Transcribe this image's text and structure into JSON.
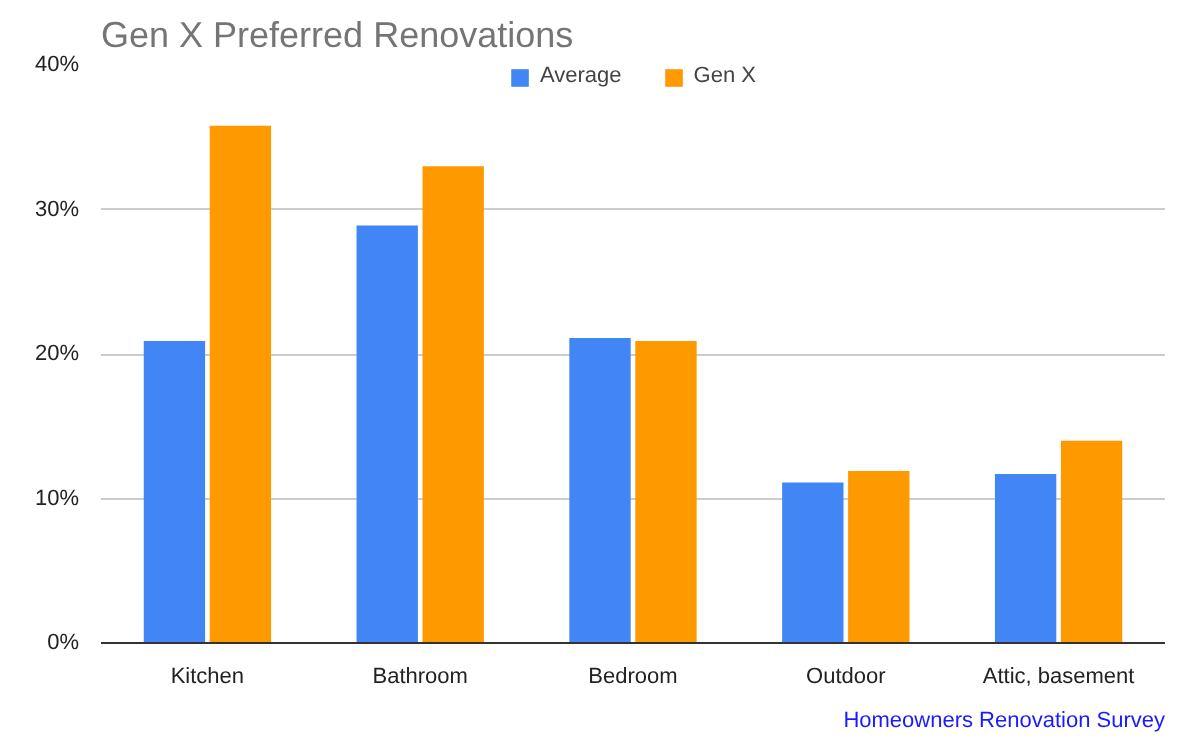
{
  "chart_data": {
    "type": "bar",
    "title": "Gen X Preferred Renovations",
    "categories": [
      "Kitchen",
      "Bathroom",
      "Bedroom",
      "Outdoor",
      "Attic, basement"
    ],
    "series": [
      {
        "name": "Average",
        "color": "#4285f4",
        "values": [
          20.9,
          28.9,
          21.1,
          11.1,
          11.7
        ]
      },
      {
        "name": "Gen X",
        "color": "#ff9900",
        "values": [
          35.8,
          33.0,
          20.9,
          11.9,
          14.0
        ]
      }
    ],
    "ylim": [
      0,
      40
    ],
    "yticks": [
      {
        "value": 0,
        "label": "0%"
      },
      {
        "value": 10,
        "label": "10%"
      },
      {
        "value": 20,
        "label": "20%"
      },
      {
        "value": 30,
        "label": "30%"
      },
      {
        "value": 40,
        "label": "40%"
      }
    ],
    "grid": "y",
    "legend": "top",
    "annotations": [
      "Homeowners Renovation Survey"
    ]
  }
}
